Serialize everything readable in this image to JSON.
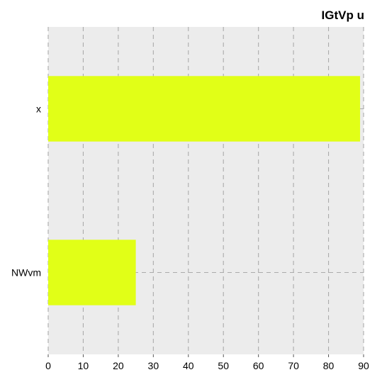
{
  "chart_data": {
    "type": "bar",
    "orientation": "horizontal",
    "title": "IGtVp u",
    "categories": [
      "x",
      "NWvm"
    ],
    "values": [
      89,
      25
    ],
    "xlim": [
      0,
      90
    ],
    "xticks": [
      "0",
      "10",
      "20",
      "30",
      "40",
      "50",
      "60",
      "70",
      "80",
      "90"
    ],
    "grid": true,
    "colors": {
      "bar": "#e1ff17",
      "plot_bg": "#ececec",
      "grid": "#ababab"
    }
  }
}
